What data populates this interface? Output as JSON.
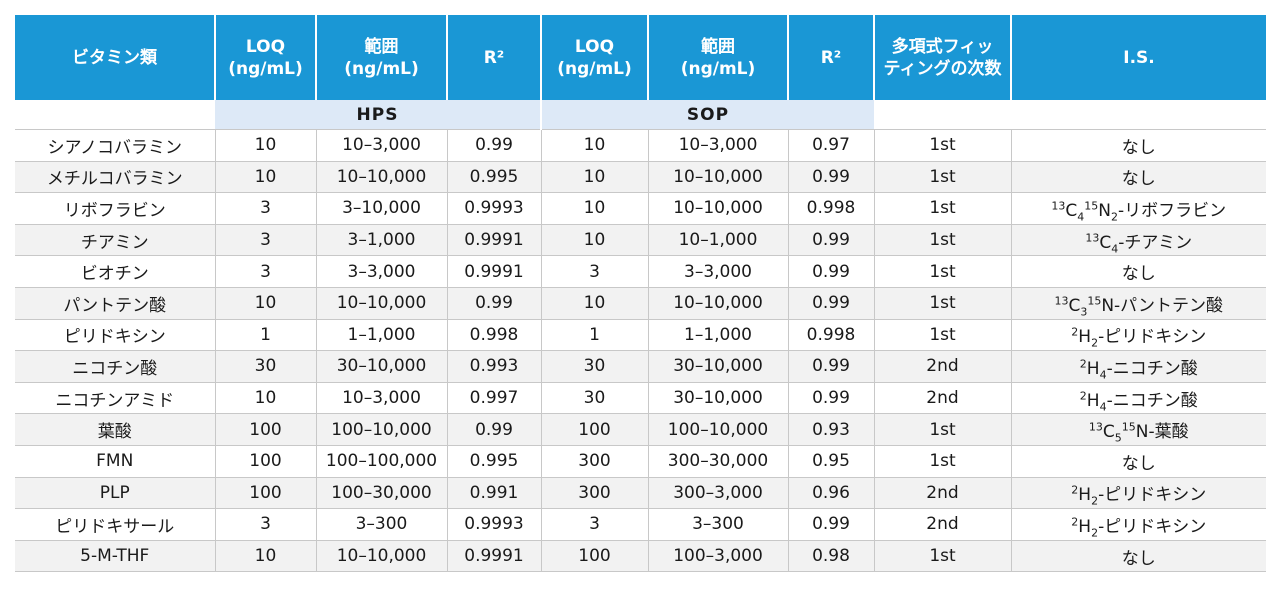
{
  "header": {
    "vitamin": "ビタミン類",
    "loq_hps": [
      "LOQ",
      "(ng/mL)"
    ],
    "range_hps": [
      "範囲",
      "(ng/mL)"
    ],
    "r2_hps": "R²",
    "loq_sop": [
      "LOQ",
      "(ng/mL)"
    ],
    "range_sop": [
      "範囲",
      "(ng/mL)"
    ],
    "r2_sop": "R²",
    "poly": [
      "多項式フィッ",
      "ティングの次数"
    ],
    "is": "I.S."
  },
  "groups": {
    "hps": "HPS",
    "sop": "SOP"
  },
  "rows": [
    {
      "name": "シアノコバラミン",
      "hps_loq": "10",
      "hps_range": "10–3,000",
      "hps_r2": "0.99",
      "sop_loq": "10",
      "sop_range": "10–3,000",
      "sop_r2": "0.97",
      "poly": "1st",
      "is": {
        "pre": "",
        "sup1": "",
        "el1": "",
        "sub1": "",
        "sup2": "",
        "el2": "",
        "sub2": "",
        "text": "なし"
      }
    },
    {
      "name": "メチルコバラミン",
      "hps_loq": "10",
      "hps_range": "10–10,000",
      "hps_r2": "0.995",
      "sop_loq": "10",
      "sop_range": "10–10,000",
      "sop_r2": "0.99",
      "poly": "1st",
      "is": {
        "pre": "",
        "sup1": "",
        "el1": "",
        "sub1": "",
        "sup2": "",
        "el2": "",
        "sub2": "",
        "text": "なし"
      }
    },
    {
      "name": "リボフラビン",
      "hps_loq": "3",
      "hps_range": "3–10,000",
      "hps_r2": "0.9993",
      "sop_loq": "10",
      "sop_range": "10–10,000",
      "sop_r2": "0.998",
      "poly": "1st",
      "is": {
        "sup1": "13",
        "el1": "C",
        "sub1": "4",
        "sup2": "15",
        "el2": "N",
        "sub2": "2",
        "text": "-リボフラビン"
      }
    },
    {
      "name": "チアミン",
      "hps_loq": "3",
      "hps_range": "3–1,000",
      "hps_r2": "0.9991",
      "sop_loq": "10",
      "sop_range": "10–1,000",
      "sop_r2": "0.99",
      "poly": "1st",
      "is": {
        "sup1": "13",
        "el1": "C",
        "sub1": "4",
        "sup2": "",
        "el2": "",
        "sub2": "",
        "text": "-チアミン"
      }
    },
    {
      "name": "ビオチン",
      "hps_loq": "3",
      "hps_range": "3–3,000",
      "hps_r2": "0.9991",
      "sop_loq": "3",
      "sop_range": "3–3,000",
      "sop_r2": "0.99",
      "poly": "1st",
      "is": {
        "sup1": "",
        "el1": "",
        "sub1": "",
        "sup2": "",
        "el2": "",
        "sub2": "",
        "text": "なし"
      }
    },
    {
      "name": "パントテン酸",
      "hps_loq": "10",
      "hps_range": "10–10,000",
      "hps_r2": "0.99",
      "sop_loq": "10",
      "sop_range": "10–10,000",
      "sop_r2": "0.99",
      "poly": "1st",
      "is": {
        "sup1": "13",
        "el1": "C",
        "sub1": "3",
        "sup2": "15",
        "el2": "N",
        "sub2": "",
        "text": "-パントテン酸"
      }
    },
    {
      "name": "ピリドキシン",
      "hps_loq": "1",
      "hps_range": "1–1,000",
      "hps_r2": "0.998",
      "sop_loq": "1",
      "sop_range": "1–1,000",
      "sop_r2": "0.998",
      "poly": "1st",
      "is": {
        "sup1": "2",
        "el1": "H",
        "sub1": "2",
        "sup2": "",
        "el2": "",
        "sub2": "",
        "text": "-ピリドキシン"
      }
    },
    {
      "name": "ニコチン酸",
      "hps_loq": "30",
      "hps_range": "30–10,000",
      "hps_r2": "0.993",
      "sop_loq": "30",
      "sop_range": "30–10,000",
      "sop_r2": "0.99",
      "poly": "2nd",
      "is": {
        "sup1": "2",
        "el1": "H",
        "sub1": "4",
        "sup2": "",
        "el2": "",
        "sub2": "",
        "text": "-ニコチン酸"
      }
    },
    {
      "name": "ニコチンアミド",
      "hps_loq": "10",
      "hps_range": "10–3,000",
      "hps_r2": "0.997",
      "sop_loq": "30",
      "sop_range": "30–10,000",
      "sop_r2": "0.99",
      "poly": "2nd",
      "is": {
        "sup1": "2",
        "el1": "H",
        "sub1": "4",
        "sup2": "",
        "el2": "",
        "sub2": "",
        "text": "-ニコチン酸"
      }
    },
    {
      "name": "葉酸",
      "hps_loq": "100",
      "hps_range": "100–10,000",
      "hps_r2": "0.99",
      "sop_loq": "100",
      "sop_range": "100–10,000",
      "sop_r2": "0.93",
      "poly": "1st",
      "is": {
        "sup1": "13",
        "el1": "C",
        "sub1": "5",
        "sup2": "15",
        "el2": "N",
        "sub2": "",
        "text": "-葉酸"
      }
    },
    {
      "name": "FMN",
      "hps_loq": "100",
      "hps_range": "100–100,000",
      "hps_r2": "0.995",
      "sop_loq": "300",
      "sop_range": "300–30,000",
      "sop_r2": "0.95",
      "poly": "1st",
      "is": {
        "sup1": "",
        "el1": "",
        "sub1": "",
        "sup2": "",
        "el2": "",
        "sub2": "",
        "text": "なし"
      }
    },
    {
      "name": "PLP",
      "hps_loq": "100",
      "hps_range": "100–30,000",
      "hps_r2": "0.991",
      "sop_loq": "300",
      "sop_range": "300–3,000",
      "sop_r2": "0.96",
      "poly": "2nd",
      "is": {
        "sup1": "2",
        "el1": "H",
        "sub1": "2",
        "sup2": "",
        "el2": "",
        "sub2": "",
        "text": "-ピリドキシン"
      }
    },
    {
      "name": "ピリドキサール",
      "hps_loq": "3",
      "hps_range": "3–300",
      "hps_r2": "0.9993",
      "sop_loq": "3",
      "sop_range": "3–300",
      "sop_r2": "0.99",
      "poly": "2nd",
      "is": {
        "sup1": "2",
        "el1": "H",
        "sub1": "2",
        "sup2": "",
        "el2": "",
        "sub2": "",
        "text": "-ピリドキシン"
      }
    },
    {
      "name": "5-M-THF",
      "hps_loq": "10",
      "hps_range": "10–10,000",
      "hps_r2": "0.9991",
      "sop_loq": "100",
      "sop_range": "100–3,000",
      "sop_r2": "0.98",
      "poly": "1st",
      "is": {
        "sup1": "",
        "el1": "",
        "sub1": "",
        "sup2": "",
        "el2": "",
        "sub2": "",
        "text": "なし"
      }
    }
  ]
}
